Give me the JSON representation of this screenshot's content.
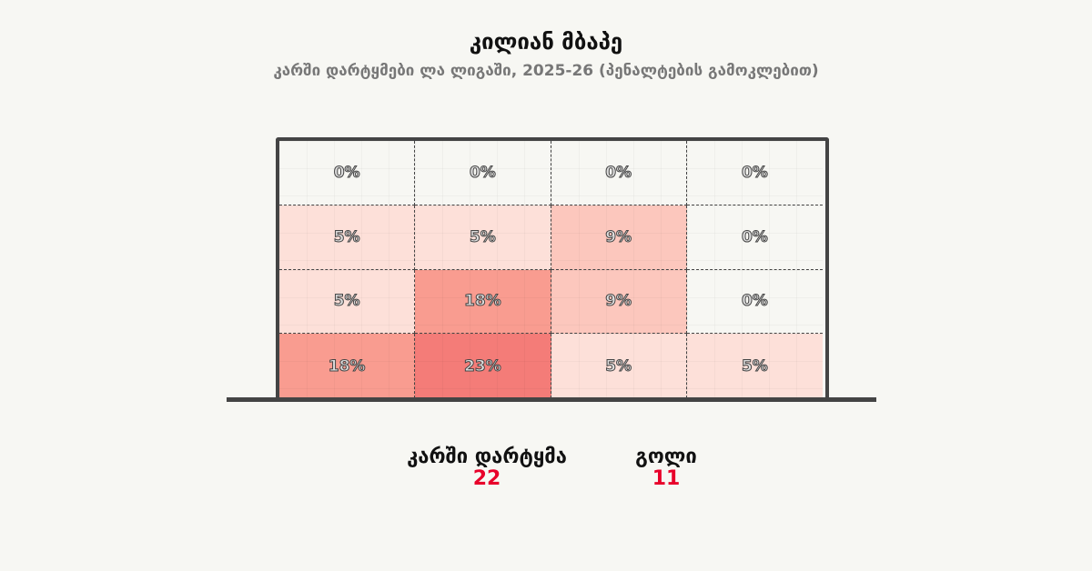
{
  "header": {
    "title": "კილიან მბაპე",
    "subtitle": "კარში დარტყმები ლა ლიგაში, 2025-26 (პენალტების გამოკლებით)"
  },
  "chart_data": {
    "type": "heatmap",
    "title": "კილიან მბაპე",
    "subtitle": "კარში დარტყმები ლა ლიგაში, 2025-26 (პენალტების გამოკლებით)",
    "rows": 4,
    "cols": 4,
    "values": [
      [
        0,
        0,
        0,
        0
      ],
      [
        5,
        5,
        9,
        0
      ],
      [
        5,
        18,
        9,
        0
      ],
      [
        18,
        23,
        5,
        5
      ]
    ],
    "labels": [
      [
        "0%",
        "0%",
        "0%",
        "0%"
      ],
      [
        "5%",
        "5%",
        "9%",
        "0%"
      ],
      [
        "5%",
        "18%",
        "9%",
        "0%"
      ],
      [
        "18%",
        "23%",
        "5%",
        "5%"
      ]
    ],
    "unit": "%",
    "color_scale": {
      "0": "#f7f7f3",
      "5": "#fde0d9",
      "9": "#fcc7bd",
      "18": "#f99c90",
      "23": "#f47c78"
    }
  },
  "stats": [
    {
      "label": "კარში დარტყმა",
      "value": "22"
    },
    {
      "label": "გოლი",
      "value": "11"
    }
  ],
  "colors": {
    "accent": "#e8002a"
  }
}
